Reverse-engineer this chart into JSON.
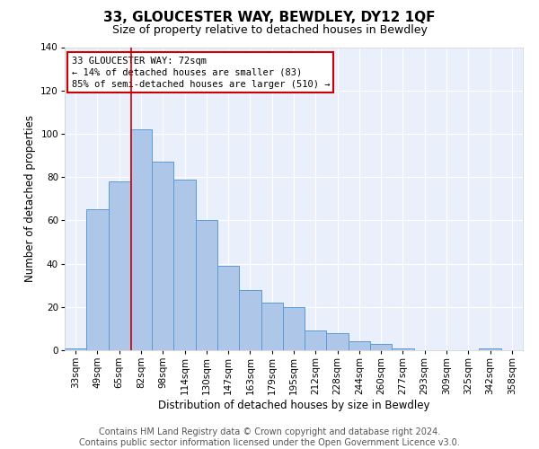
{
  "title": "33, GLOUCESTER WAY, BEWDLEY, DY12 1QF",
  "subtitle": "Size of property relative to detached houses in Bewdley",
  "xlabel": "Distribution of detached houses by size in Bewdley",
  "ylabel": "Number of detached properties",
  "bar_labels": [
    "33sqm",
    "49sqm",
    "65sqm",
    "82sqm",
    "98sqm",
    "114sqm",
    "130sqm",
    "147sqm",
    "163sqm",
    "179sqm",
    "195sqm",
    "212sqm",
    "228sqm",
    "244sqm",
    "260sqm",
    "277sqm",
    "293sqm",
    "309sqm",
    "325sqm",
    "342sqm",
    "358sqm"
  ],
  "bar_values": [
    1,
    65,
    78,
    102,
    87,
    79,
    60,
    39,
    28,
    22,
    20,
    9,
    8,
    4,
    3,
    1,
    0,
    0,
    0,
    1,
    0
  ],
  "bar_color": "#aec6e8",
  "bar_edgecolor": "#5b9bd5",
  "background_color": "#eaf0fb",
  "grid_color": "#ffffff",
  "annotation_box_text": "33 GLOUCESTER WAY: 72sqm\n← 14% of detached houses are smaller (83)\n85% of semi-detached houses are larger (510) →",
  "annotation_box_color": "#ffffff",
  "annotation_box_edgecolor": "#cc0000",
  "vline_x": 2.55,
  "vline_color": "#cc0000",
  "ylim": [
    0,
    140
  ],
  "yticks": [
    0,
    20,
    40,
    60,
    80,
    100,
    120,
    140
  ],
  "footer_text": "Contains HM Land Registry data © Crown copyright and database right 2024.\nContains public sector information licensed under the Open Government Licence v3.0.",
  "title_fontsize": 11,
  "subtitle_fontsize": 9,
  "xlabel_fontsize": 8.5,
  "ylabel_fontsize": 8.5,
  "tick_fontsize": 7.5,
  "footer_fontsize": 7.0,
  "annot_fontsize": 7.5
}
